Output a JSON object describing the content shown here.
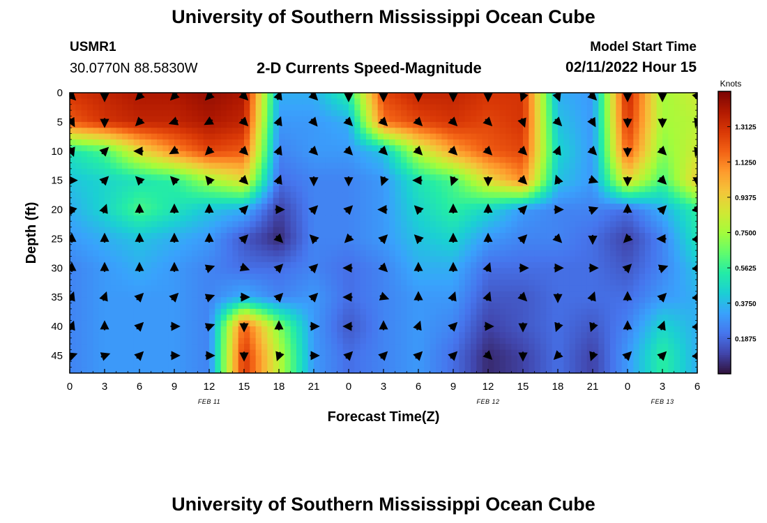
{
  "header": {
    "title": "University of Southern Mississippi Ocean Cube",
    "station": "USMR1",
    "coords": "30.0770N  88.5830W",
    "subtitle": "2-D Currents Speed-Magnitude",
    "model_start_label": "Model Start Time",
    "model_start_value": "02/11/2022 Hour 15"
  },
  "footer": {
    "title": "University of Southern Mississippi Ocean Cube"
  },
  "chart_data": {
    "type": "heatmap",
    "xlabel": "Forecast Time(Z)",
    "ylabel": "Depth (ft)",
    "x_ticks": [
      "0",
      "3",
      "6",
      "9",
      "12",
      "15",
      "18",
      "21",
      "0",
      "3",
      "6",
      "9",
      "12",
      "15",
      "18",
      "21",
      "0",
      "3",
      "6"
    ],
    "y_ticks": [
      0,
      5,
      10,
      15,
      20,
      25,
      30,
      35,
      40,
      45
    ],
    "date_labels": [
      {
        "label": "FEB 11",
        "tick_index": 4
      },
      {
        "label": "FEB 12",
        "tick_index": 12
      },
      {
        "label": "FEB 13",
        "tick_index": 17
      }
    ],
    "xlim_hours": [
      0,
      54
    ],
    "ylim_ft": [
      0,
      48
    ],
    "colorbar": {
      "title": "Knots",
      "ticks": [
        "1.3125",
        "1.1250",
        "0.9375",
        "0.7500",
        "0.5625",
        "0.3750",
        "0.1875"
      ],
      "range": [
        0,
        1.5
      ],
      "colors": [
        "#30123b",
        "#4145ab",
        "#4675ed",
        "#39a2fc",
        "#1bcfd4",
        "#24eca6",
        "#61fc6c",
        "#a4fc3b",
        "#d1e834",
        "#f3c63a",
        "#fe9b2d",
        "#f36315",
        "#d93806",
        "#b11901",
        "#7a0403"
      ]
    },
    "speed_grid_hours": [
      0,
      3,
      6,
      9,
      12,
      15,
      18,
      21,
      24,
      27,
      30,
      33,
      36,
      39,
      42,
      45,
      48,
      51,
      54
    ],
    "speed_grid_depths": [
      0,
      5,
      10,
      15,
      20,
      25,
      30,
      35,
      40,
      45
    ],
    "speed_knots": [
      [
        1.3,
        1.35,
        1.4,
        1.4,
        1.45,
        1.4,
        0.35,
        0.35,
        0.55,
        1.25,
        1.35,
        1.35,
        1.3,
        1.3,
        0.35,
        0.3,
        1.35,
        0.75,
        0.85
      ],
      [
        1.2,
        1.3,
        1.35,
        1.35,
        1.4,
        1.35,
        0.3,
        0.3,
        0.35,
        1.15,
        1.25,
        1.3,
        1.25,
        1.3,
        0.4,
        0.3,
        1.3,
        0.75,
        0.8
      ],
      [
        0.5,
        0.6,
        0.9,
        1.1,
        1.25,
        1.2,
        0.25,
        0.3,
        0.3,
        0.4,
        0.8,
        1.05,
        1.2,
        1.25,
        0.45,
        0.3,
        1.2,
        0.7,
        0.85
      ],
      [
        0.4,
        0.45,
        0.5,
        0.55,
        0.75,
        0.9,
        0.2,
        0.25,
        0.25,
        0.3,
        0.5,
        0.6,
        0.9,
        1.1,
        0.4,
        0.3,
        0.9,
        0.6,
        0.95
      ],
      [
        0.35,
        0.45,
        0.6,
        0.5,
        0.4,
        0.35,
        0.1,
        0.25,
        0.25,
        0.3,
        0.45,
        0.55,
        0.45,
        0.3,
        0.25,
        0.25,
        0.2,
        0.35,
        0.55
      ],
      [
        0.3,
        0.35,
        0.4,
        0.35,
        0.3,
        0.15,
        0.05,
        0.25,
        0.25,
        0.3,
        0.4,
        0.45,
        0.3,
        0.25,
        0.25,
        0.2,
        0.1,
        0.25,
        0.5
      ],
      [
        0.25,
        0.3,
        0.35,
        0.3,
        0.25,
        0.2,
        0.2,
        0.25,
        0.2,
        0.25,
        0.35,
        0.35,
        0.2,
        0.2,
        0.2,
        0.2,
        0.15,
        0.25,
        0.4
      ],
      [
        0.25,
        0.3,
        0.3,
        0.3,
        0.25,
        0.35,
        0.25,
        0.3,
        0.2,
        0.25,
        0.3,
        0.3,
        0.15,
        0.15,
        0.2,
        0.2,
        0.2,
        0.3,
        0.35
      ],
      [
        0.25,
        0.3,
        0.3,
        0.3,
        0.25,
        1.2,
        0.7,
        0.3,
        0.15,
        0.25,
        0.3,
        0.25,
        0.1,
        0.15,
        0.2,
        0.15,
        0.25,
        0.45,
        0.35
      ],
      [
        0.25,
        0.3,
        0.3,
        0.3,
        0.25,
        1.3,
        0.8,
        0.3,
        0.2,
        0.25,
        0.3,
        0.2,
        0.05,
        0.1,
        0.2,
        0.1,
        0.3,
        0.55,
        0.35
      ]
    ],
    "arrow_grid_hours": [
      0,
      3,
      6,
      9,
      12,
      15,
      18,
      21,
      24,
      27,
      30,
      33,
      36,
      39,
      42,
      45,
      48,
      51,
      54
    ],
    "arrow_grid_depths": [
      0,
      5,
      10,
      15,
      20,
      25,
      30,
      35,
      40,
      45
    ],
    "arrow_direction_deg": [
      [
        135,
        180,
        225,
        225,
        225,
        135,
        20,
        135,
        180,
        180,
        180,
        180,
        180,
        200,
        160,
        135,
        180,
        180,
        160
      ],
      [
        150,
        180,
        225,
        250,
        240,
        135,
        20,
        140,
        135,
        135,
        135,
        135,
        135,
        160,
        135,
        150,
        180,
        180,
        200
      ],
      [
        160,
        45,
        270,
        240,
        225,
        135,
        20,
        135,
        135,
        135,
        135,
        135,
        135,
        135,
        20,
        135,
        180,
        135,
        200
      ],
      [
        90,
        45,
        315,
        315,
        320,
        135,
        20,
        180,
        180,
        200,
        270,
        200,
        180,
        135,
        340,
        110,
        180,
        135,
        180
      ],
      [
        315,
        20,
        0,
        0,
        0,
        45,
        90,
        45,
        45,
        270,
        315,
        0,
        0,
        45,
        90,
        70,
        0,
        45,
        135
      ],
      [
        0,
        0,
        0,
        0,
        0,
        45,
        135,
        315,
        225,
        45,
        315,
        0,
        0,
        45,
        135,
        180,
        225,
        270,
        20
      ],
      [
        0,
        0,
        0,
        0,
        70,
        110,
        45,
        45,
        270,
        135,
        0,
        0,
        20,
        90,
        90,
        90,
        45,
        70,
        20
      ],
      [
        20,
        20,
        45,
        45,
        70,
        90,
        45,
        45,
        270,
        110,
        0,
        20,
        20,
        135,
        180,
        20,
        0,
        45,
        20
      ],
      [
        20,
        0,
        45,
        90,
        70,
        180,
        0,
        90,
        270,
        0,
        20,
        45,
        90,
        180,
        200,
        200,
        0,
        20,
        20
      ],
      [
        70,
        70,
        45,
        90,
        90,
        180,
        200,
        90,
        45,
        45,
        45,
        45,
        135,
        180,
        225,
        200,
        45,
        45,
        20
      ]
    ]
  }
}
